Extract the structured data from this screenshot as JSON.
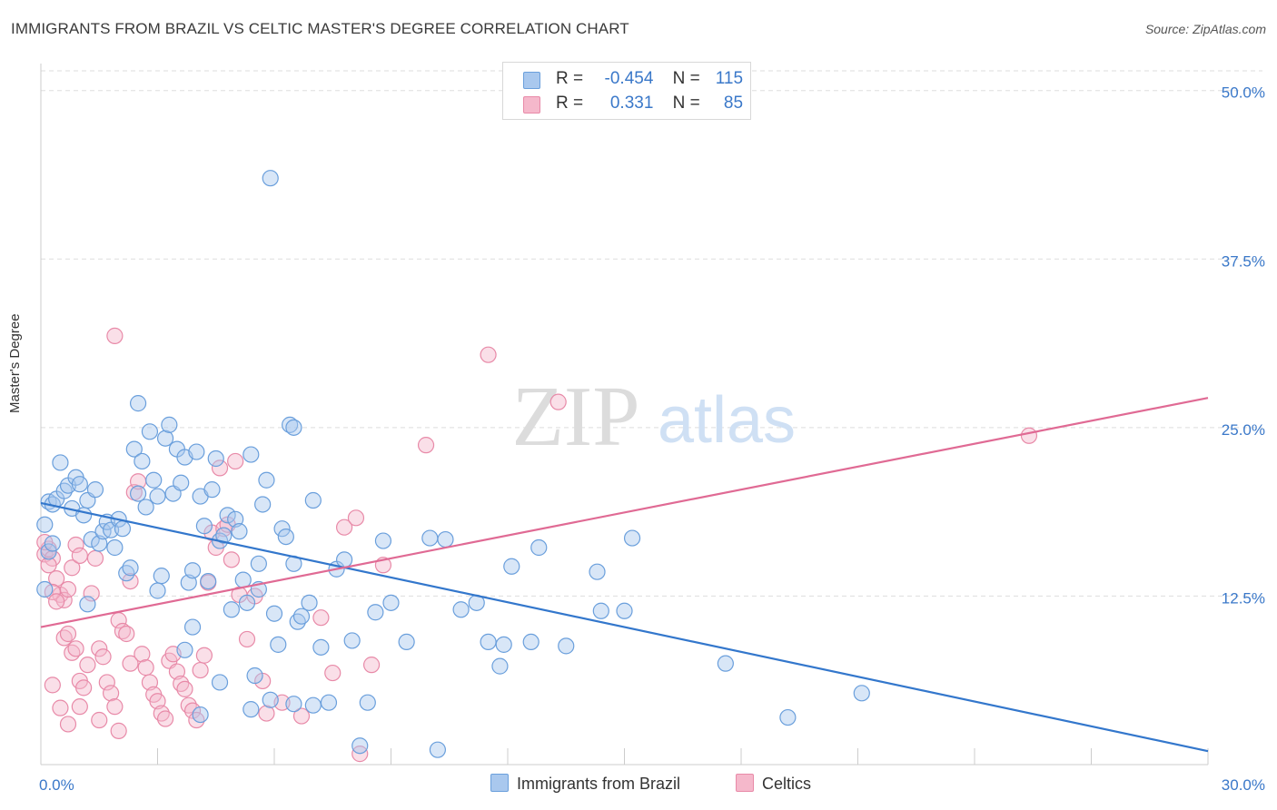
{
  "title": "IMMIGRANTS FROM BRAZIL VS CELTIC MASTER'S DEGREE CORRELATION CHART",
  "source": "Source: ZipAtlas.com",
  "watermark": {
    "zip": "ZIP",
    "atlas": "atlas"
  },
  "legend_top": {
    "rows": [
      {
        "r_label": "R =",
        "r_value": "-0.454",
        "n_label": "N =",
        "n_value": "115"
      },
      {
        "r_label": "R =",
        "r_value": "0.331",
        "n_label": "N =",
        "n_value": "85"
      }
    ]
  },
  "colors": {
    "blue_fill": "#a9c8ee",
    "blue_stroke": "#6a9fdc",
    "blue_line": "#3377cc",
    "pink_fill": "#f5b8cb",
    "pink_stroke": "#e88aa8",
    "pink_line": "#e06a94",
    "grid": "#dddddd",
    "tick_text": "#3a78c9"
  },
  "chart_data": {
    "type": "scatter",
    "title": "IMMIGRANTS FROM BRAZIL VS CELTIC MASTER'S DEGREE CORRELATION CHART",
    "ylabel": "Master's Degree",
    "xlabel": "",
    "xlim": [
      0,
      30
    ],
    "ylim": [
      0,
      52
    ],
    "x_tick_labels": [
      "0.0%",
      "30.0%"
    ],
    "y_ticks": [
      12.5,
      25.0,
      37.5,
      50.0
    ],
    "y_tick_labels": [
      "12.5%",
      "25.0%",
      "37.5%",
      "50.0%"
    ],
    "grid": true,
    "legend_position": "top-center",
    "series": [
      {
        "name": "Immigrants from Brazil",
        "color": "#a9c8ee",
        "trendline": {
          "x": [
            0,
            30
          ],
          "y": [
            19.4,
            1.0
          ]
        },
        "points": [
          [
            0.1,
            17.8
          ],
          [
            0.2,
            19.5
          ],
          [
            0.3,
            19.3
          ],
          [
            0.4,
            19.7
          ],
          [
            0.5,
            22.4
          ],
          [
            0.6,
            20.3
          ],
          [
            0.7,
            20.7
          ],
          [
            0.8,
            19.0
          ],
          [
            0.9,
            21.3
          ],
          [
            1.0,
            20.8
          ],
          [
            0.1,
            13.0
          ],
          [
            0.2,
            15.8
          ],
          [
            0.3,
            16.4
          ],
          [
            1.1,
            18.5
          ],
          [
            1.2,
            19.6
          ],
          [
            1.3,
            16.7
          ],
          [
            1.4,
            20.4
          ],
          [
            1.5,
            16.4
          ],
          [
            1.6,
            17.3
          ],
          [
            1.7,
            18.0
          ],
          [
            1.8,
            17.4
          ],
          [
            1.9,
            16.1
          ],
          [
            2.0,
            18.2
          ],
          [
            2.1,
            17.5
          ],
          [
            2.2,
            14.2
          ],
          [
            2.3,
            14.6
          ],
          [
            2.4,
            23.4
          ],
          [
            2.5,
            20.1
          ],
          [
            2.6,
            22.5
          ],
          [
            2.7,
            19.1
          ],
          [
            2.8,
            24.7
          ],
          [
            2.9,
            21.1
          ],
          [
            3.0,
            19.9
          ],
          [
            3.1,
            14.0
          ],
          [
            3.2,
            24.2
          ],
          [
            3.3,
            25.2
          ],
          [
            3.4,
            20.1
          ],
          [
            3.5,
            23.4
          ],
          [
            3.6,
            20.9
          ],
          [
            3.7,
            22.8
          ],
          [
            3.8,
            13.5
          ],
          [
            3.9,
            14.4
          ],
          [
            4.0,
            23.2
          ],
          [
            4.1,
            19.9
          ],
          [
            4.2,
            17.7
          ],
          [
            4.3,
            13.6
          ],
          [
            4.4,
            20.4
          ],
          [
            4.5,
            22.7
          ],
          [
            4.6,
            16.6
          ],
          [
            4.7,
            17.0
          ],
          [
            4.8,
            18.5
          ],
          [
            4.9,
            11.5
          ],
          [
            5.0,
            18.2
          ],
          [
            5.1,
            17.3
          ],
          [
            5.2,
            13.7
          ],
          [
            5.3,
            12.0
          ],
          [
            5.4,
            23.0
          ],
          [
            5.5,
            6.6
          ],
          [
            5.6,
            14.9
          ],
          [
            5.7,
            19.3
          ],
          [
            5.8,
            21.1
          ],
          [
            5.9,
            4.8
          ],
          [
            6.0,
            11.2
          ],
          [
            6.1,
            8.9
          ],
          [
            6.2,
            17.5
          ],
          [
            6.3,
            16.9
          ],
          [
            6.4,
            25.2
          ],
          [
            6.5,
            25.0
          ],
          [
            6.6,
            10.6
          ],
          [
            6.7,
            11.0
          ],
          [
            6.9,
            12.0
          ],
          [
            7.0,
            19.6
          ],
          [
            7.2,
            8.7
          ],
          [
            7.4,
            4.6
          ],
          [
            7.6,
            14.5
          ],
          [
            7.8,
            15.2
          ],
          [
            8.0,
            9.2
          ],
          [
            8.2,
            1.4
          ],
          [
            8.6,
            11.3
          ],
          [
            8.8,
            16.6
          ],
          [
            9.0,
            12.0
          ],
          [
            9.4,
            9.1
          ],
          [
            10.0,
            16.8
          ],
          [
            10.4,
            16.7
          ],
          [
            10.8,
            11.5
          ],
          [
            11.2,
            12.0
          ],
          [
            11.5,
            9.1
          ],
          [
            11.8,
            7.3
          ],
          [
            12.1,
            14.7
          ],
          [
            12.6,
            9.1
          ],
          [
            12.8,
            16.1
          ],
          [
            13.5,
            8.8
          ],
          [
            14.3,
            14.3
          ],
          [
            14.4,
            11.4
          ],
          [
            15.0,
            11.4
          ],
          [
            15.2,
            16.8
          ],
          [
            1.2,
            11.9
          ],
          [
            3.7,
            8.5
          ],
          [
            3.9,
            10.2
          ],
          [
            2.5,
            26.8
          ],
          [
            3.0,
            12.9
          ],
          [
            4.6,
            6.1
          ],
          [
            5.6,
            13.0
          ],
          [
            6.5,
            14.9
          ],
          [
            4.1,
            3.7
          ],
          [
            5.4,
            4.1
          ],
          [
            6.5,
            4.5
          ],
          [
            7.0,
            4.4
          ],
          [
            8.4,
            4.6
          ],
          [
            10.2,
            1.1
          ],
          [
            11.9,
            8.9
          ],
          [
            17.6,
            7.5
          ],
          [
            19.2,
            3.5
          ],
          [
            21.1,
            5.3
          ],
          [
            5.9,
            43.5
          ]
        ]
      },
      {
        "name": "Celtics",
        "color": "#f5b8cb",
        "trendline": {
          "x": [
            0,
            30
          ],
          "y": [
            10.2,
            27.2
          ]
        },
        "points": [
          [
            0.1,
            15.6
          ],
          [
            0.2,
            16.0
          ],
          [
            0.3,
            15.3
          ],
          [
            0.4,
            13.8
          ],
          [
            0.5,
            12.6
          ],
          [
            0.6,
            12.2
          ],
          [
            0.7,
            13.0
          ],
          [
            0.8,
            14.6
          ],
          [
            0.9,
            16.3
          ],
          [
            1.0,
            15.5
          ],
          [
            0.1,
            16.5
          ],
          [
            0.2,
            14.8
          ],
          [
            0.3,
            12.8
          ],
          [
            0.4,
            12.1
          ],
          [
            0.6,
            9.4
          ],
          [
            0.7,
            9.7
          ],
          [
            0.8,
            8.3
          ],
          [
            0.9,
            8.6
          ],
          [
            1.0,
            6.2
          ],
          [
            1.1,
            5.7
          ],
          [
            1.2,
            7.4
          ],
          [
            1.3,
            12.7
          ],
          [
            1.4,
            15.3
          ],
          [
            1.5,
            8.6
          ],
          [
            1.6,
            8.0
          ],
          [
            1.7,
            6.1
          ],
          [
            1.8,
            5.3
          ],
          [
            1.9,
            4.3
          ],
          [
            2.0,
            10.7
          ],
          [
            2.1,
            9.9
          ],
          [
            2.2,
            9.7
          ],
          [
            2.3,
            7.5
          ],
          [
            2.4,
            20.2
          ],
          [
            2.5,
            21.0
          ],
          [
            2.6,
            8.2
          ],
          [
            2.7,
            7.2
          ],
          [
            2.8,
            6.1
          ],
          [
            2.9,
            5.2
          ],
          [
            3.0,
            4.7
          ],
          [
            3.1,
            3.8
          ],
          [
            3.2,
            3.4
          ],
          [
            3.3,
            7.7
          ],
          [
            3.4,
            8.2
          ],
          [
            3.5,
            6.9
          ],
          [
            3.6,
            6.0
          ],
          [
            3.7,
            5.6
          ],
          [
            3.8,
            4.4
          ],
          [
            3.9,
            4.0
          ],
          [
            4.0,
            3.3
          ],
          [
            4.1,
            7.0
          ],
          [
            4.2,
            8.1
          ],
          [
            4.3,
            13.5
          ],
          [
            4.4,
            17.2
          ],
          [
            4.5,
            16.1
          ],
          [
            4.6,
            22.0
          ],
          [
            4.7,
            17.5
          ],
          [
            4.8,
            17.8
          ],
          [
            4.9,
            15.2
          ],
          [
            5.0,
            22.5
          ],
          [
            5.1,
            12.6
          ],
          [
            5.3,
            9.3
          ],
          [
            5.5,
            12.5
          ],
          [
            5.7,
            6.2
          ],
          [
            6.2,
            4.6
          ],
          [
            6.7,
            3.6
          ],
          [
            7.2,
            10.9
          ],
          [
            7.5,
            6.8
          ],
          [
            7.8,
            17.6
          ],
          [
            8.1,
            18.3
          ],
          [
            8.5,
            7.4
          ],
          [
            8.8,
            14.8
          ],
          [
            9.9,
            23.7
          ],
          [
            11.5,
            30.4
          ],
          [
            13.3,
            26.9
          ],
          [
            25.4,
            24.4
          ],
          [
            1.9,
            31.8
          ],
          [
            0.3,
            5.9
          ],
          [
            0.5,
            4.2
          ],
          [
            0.7,
            3.0
          ],
          [
            1.0,
            4.3
          ],
          [
            1.5,
            3.3
          ],
          [
            2.0,
            2.5
          ],
          [
            2.3,
            13.6
          ],
          [
            5.8,
            3.8
          ],
          [
            8.2,
            0.8
          ]
        ]
      }
    ]
  }
}
